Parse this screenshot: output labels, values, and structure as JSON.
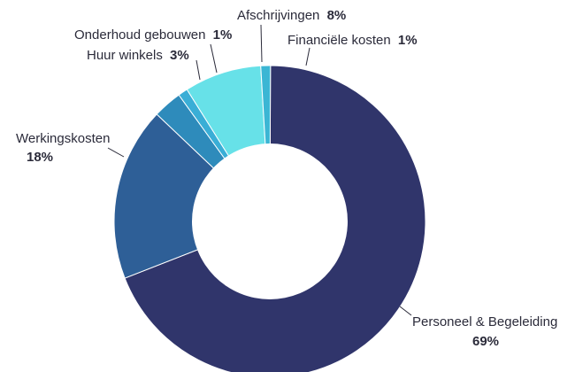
{
  "chart_data": {
    "type": "pie",
    "style": "donut",
    "slices": [
      {
        "label": "Personeel & Begeleiding",
        "value": 69,
        "value_label": "69%",
        "color": "#30356b"
      },
      {
        "label": "Werkingskosten",
        "value": 18,
        "value_label": "18%",
        "color": "#2e5f97"
      },
      {
        "label": "Huur winkels",
        "value": 3,
        "value_label": "3%",
        "color": "#2e8bbb"
      },
      {
        "label": "Onderhoud gebouwen",
        "value": 1,
        "value_label": "1%",
        "color": "#3aaed6"
      },
      {
        "label": "Afschrijvingen",
        "value": 8,
        "value_label": "8%",
        "color": "#67e1e8"
      },
      {
        "label": "Financiële kosten",
        "value": 1,
        "value_label": "1%",
        "color": "#3bb6d4"
      }
    ]
  }
}
